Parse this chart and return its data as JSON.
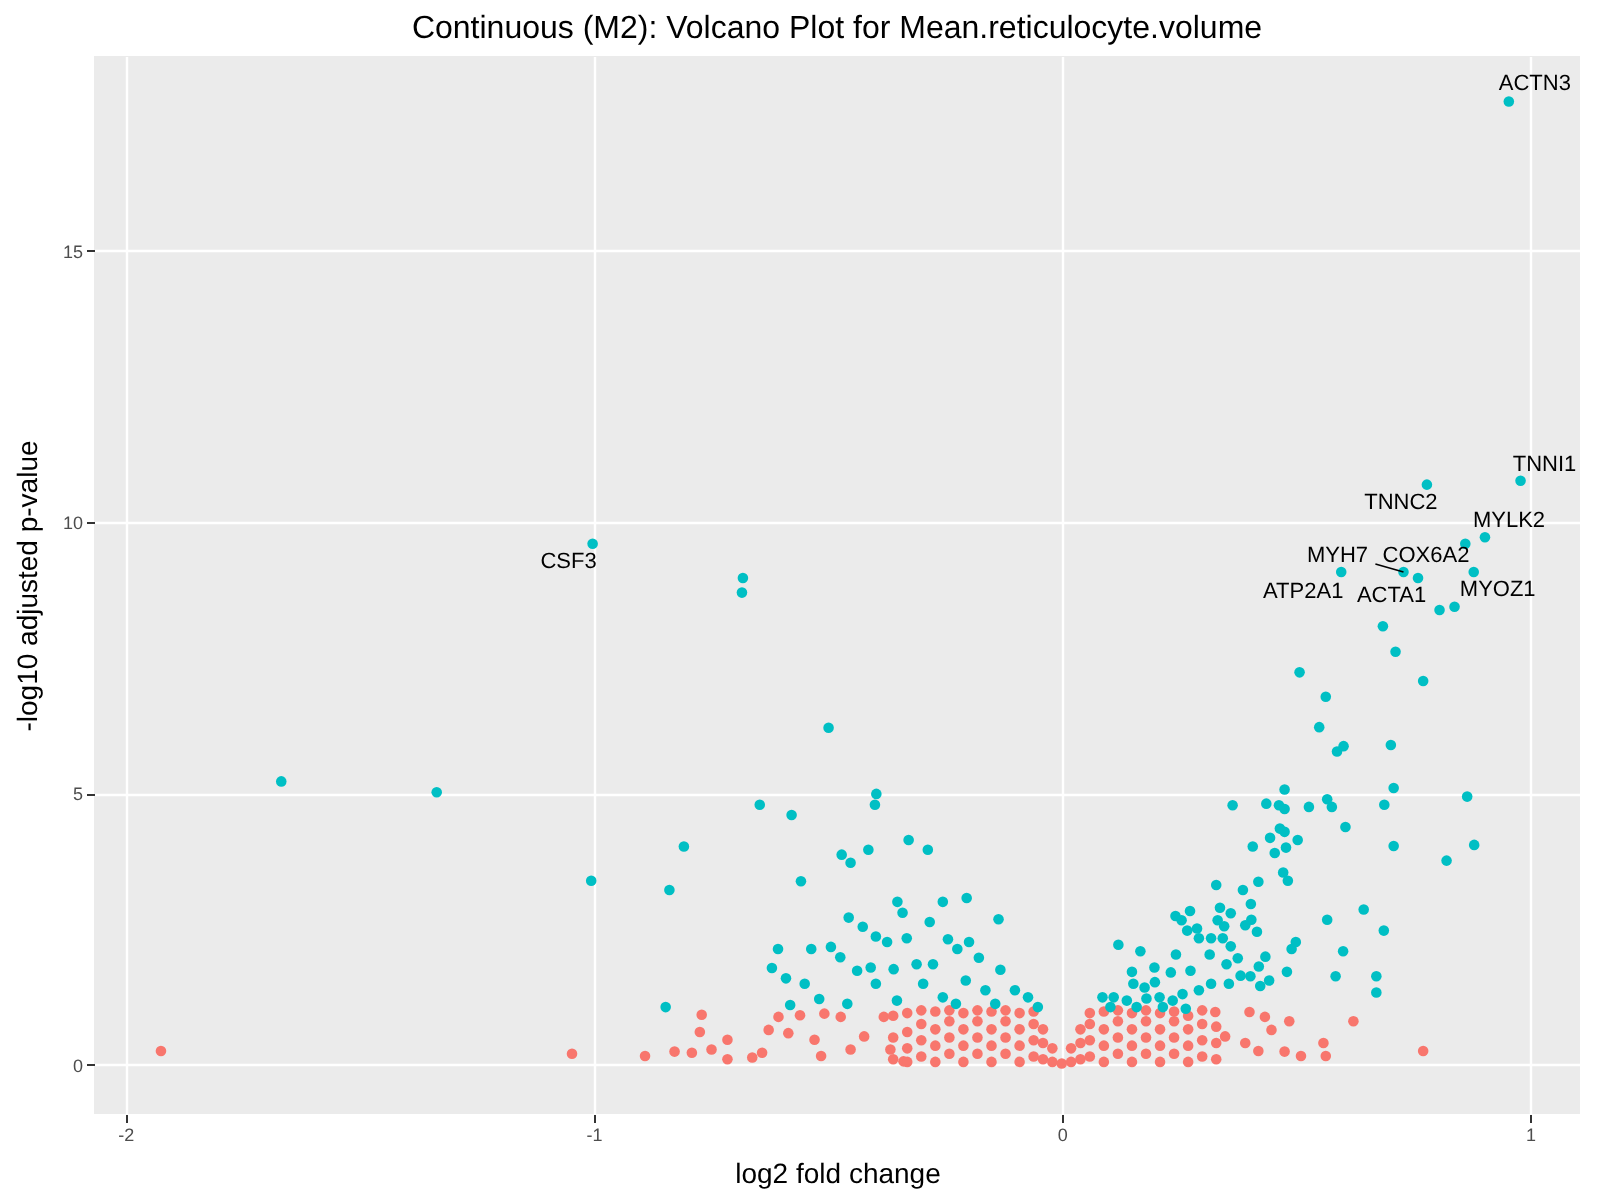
{
  "chart_data": {
    "type": "scatter",
    "title": "Continuous (M2): Volcano Plot for Mean.reticulocyte.volume",
    "xlabel": "log2 fold change",
    "ylabel": "-log10 adjusted p-value",
    "xlim": [
      -2.067,
      1.107
    ],
    "ylim": [
      -0.91,
      18.59
    ],
    "xticks": [
      -2,
      -1,
      0,
      1
    ],
    "yticks": [
      0,
      5,
      10,
      15
    ],
    "grid": true,
    "legend": false,
    "marker": "circle",
    "series": [
      {
        "color": "#f8766d",
        "x": [
          -1.924,
          -1.046,
          -0.89,
          -0.769,
          -0.773,
          -0.827,
          -0.79,
          -0.714,
          -0.748,
          -0.714,
          -0.661,
          -0.64,
          -0.605,
          -0.626,
          -0.584,
          -0.559,
          -0.528,
          -0.514,
          -0.507,
          -0.472,
          -0.451,
          -0.422,
          -0.38,
          -0.366,
          -0.338,
          -0.36,
          -0.36,
          -0.36,
          -0.33,
          -0.33,
          -0.33,
          -0.33,
          -0.3,
          -0.3,
          -0.3,
          -0.3,
          -0.27,
          -0.27,
          -0.27,
          -0.27,
          -0.24,
          -0.24,
          -0.24,
          -0.24,
          -0.21,
          -0.21,
          -0.21,
          -0.21,
          -0.18,
          -0.18,
          -0.18,
          -0.18,
          -0.15,
          -0.15,
          -0.15,
          -0.15,
          -0.12,
          -0.12,
          -0.12,
          -0.12,
          -0.09,
          -0.09,
          -0.09,
          -0.09,
          -0.06,
          -0.06,
          -0.06,
          -0.06,
          -0.04,
          -0.04,
          -0.04,
          -0.02,
          -0.02,
          0,
          0.02,
          0.02,
          0.04,
          0.04,
          0.04,
          0.06,
          0.06,
          0.06,
          0.06,
          0.09,
          0.09,
          0.09,
          0.09,
          0.12,
          0.12,
          0.12,
          0.12,
          0.15,
          0.15,
          0.15,
          0.15,
          0.18,
          0.18,
          0.18,
          0.18,
          0.21,
          0.21,
          0.21,
          0.21,
          0.24,
          0.24,
          0.24,
          0.24,
          0.27,
          0.27,
          0.27,
          0.27,
          0.3,
          0.3,
          0.3,
          0.3,
          0.33,
          0.33,
          0.33,
          0.623,
          0.772,
          0.559,
          0.564,
          0.511,
          0.476,
          0.486,
          0.448,
          0.434,
          0.401,
          0.42,
          0.392,
          0.349,
          0.328
        ],
        "values": [
          0.25,
          0.2,
          0.16,
          0.92,
          0.6,
          0.24,
          0.22,
          0.46,
          0.28,
          0.1,
          0.13,
          0.22,
          0.88,
          0.64,
          0.58,
          0.91,
          0.46,
          0.16,
          0.94,
          0.88,
          0.28,
          0.52,
          0.88,
          0.28,
          0.06,
          0.1,
          0.5,
          0.9,
          0.05,
          0.3,
          0.6,
          0.95,
          0.15,
          0.45,
          0.75,
          1.0,
          0.05,
          0.35,
          0.65,
          0.98,
          0.2,
          0.5,
          0.8,
          1.0,
          0.05,
          0.35,
          0.65,
          0.95,
          0.2,
          0.5,
          0.8,
          1.0,
          0.05,
          0.35,
          0.65,
          0.98,
          0.2,
          0.5,
          0.8,
          1.0,
          0.05,
          0.35,
          0.65,
          0.95,
          0.15,
          0.45,
          0.75,
          0.98,
          0.1,
          0.4,
          0.65,
          0.05,
          0.3,
          0.02,
          0.05,
          0.3,
          0.1,
          0.4,
          0.65,
          0.15,
          0.45,
          0.75,
          0.95,
          0.05,
          0.35,
          0.65,
          0.98,
          0.2,
          0.5,
          0.8,
          1.0,
          0.05,
          0.35,
          0.65,
          0.95,
          0.2,
          0.5,
          0.8,
          1.0,
          0.05,
          0.35,
          0.65,
          0.95,
          0.2,
          0.5,
          0.8,
          0.98,
          0.05,
          0.35,
          0.65,
          0.9,
          0.15,
          0.45,
          0.75,
          1.0,
          0.1,
          0.4,
          0.7,
          0.8,
          0.25,
          0.4,
          0.16,
          0.16,
          0.24,
          0.8,
          0.64,
          0.88,
          0.97,
          0.25,
          0.4,
          0.52,
          0.97
        ]
      },
      {
        "color": "#00bfc4",
        "x": [
          0.955,
          0.98,
          0.78,
          0.904,
          0.862,
          0.73,
          0.761,
          0.597,
          0.807,
          0.839,
          0.88,
          -1.002,
          0.686,
          -1.667,
          -1.335,
          -1.005,
          -0.681,
          -0.683,
          -0.498,
          -0.645,
          -0.577,
          -0.396,
          -0.399,
          -0.807,
          -0.838,
          -0.557,
          -0.846,
          -0.47,
          -0.451,
          -0.413,
          -0.327,
          -0.286,
          -0.455,
          -0.351,
          -0.34,
          -0.254,
          -0.203,
          -0.135,
          -0.425,
          -0.606,
          -0.535,
          -0.493,
          -0.619,
          -0.589,
          -0.549,
          -0.58,
          -0.518,
          -0.473,
          -0.437,
          -0.397,
          -0.373,
          -0.331,
          -0.282,
          -0.243,
          -0.198,
          -0.408,
          -0.359,
          -0.31,
          -0.275,
          -0.223,
          -0.177,
          -0.131,
          -0.397,
          -0.352,
          -0.296,
          -0.254,
          -0.205,
          -0.163,
          -0.1,
          -0.072,
          -0.051,
          -0.458,
          -0.226,
          -0.142,
          0.713,
          0.508,
          0.772,
          0.564,
          0.55,
          0.588,
          0.602,
          0.703,
          0.709,
          0.866,
          0.476,
          0.365,
          0.437,
          0.464,
          0.476,
          0.528,
          0.567,
          0.577,
          0.689,
          0.606,
          0.709,
          0.881,
          0.822,
          0.466,
          0.476,
          0.504,
          0.445,
          0.408,
          0.455,
          0.479,
          0.473,
          0.483,
          0.42,
          0.387,
          0.33,
          0.404,
          0.338,
          0.361,
          0.274,
          0.243,
          0.256,
          0.333,
          0.405,
          0.417,
          0.392,
          0.347,
          0.268,
          0.289,
          0.293,
          0.319,
          0.344,
          0.361,
          0.5,
          0.491,
          0.567,
          0.645,
          0.688,
          0.601,
          0.585,
          0.672,
          0.672,
          0.481,
          0.121,
          0.168,
          0.198,
          0.15,
          0.233,
          0.244,
          0.275,
          0.316,
          0.352,
          0.376,
          0.382,
          0.403,
          0.421,
          0.435,
          0.424,
          0.443,
          0.357,
          0.319,
          0.293,
          0.199,
          0.177,
          0.153,
          0.087,
          0.111,
          0.139,
          0.181,
          0.209,
          0.237,
          0.258,
          0.104,
          0.16,
          0.216,
          0.265
        ],
        "values": [
          17.75,
          10.76,
          10.69,
          9.72,
          9.6,
          9.08,
          8.97,
          9.08,
          8.38,
          8.44,
          9.08,
          9.6,
          8.08,
          5.22,
          5.02,
          3.39,
          8.97,
          8.7,
          6.21,
          4.79,
          4.6,
          4.99,
          4.79,
          4.02,
          3.22,
          3.38,
          1.06,
          3.87,
          3.72,
          3.96,
          4.14,
          3.96,
          2.71,
          3.0,
          2.8,
          3.0,
          3.07,
          2.68,
          2.54,
          2.13,
          2.13,
          2.17,
          1.78,
          1.59,
          1.49,
          1.1,
          1.21,
          1.98,
          1.73,
          2.36,
          2.26,
          2.33,
          2.63,
          2.31,
          2.26,
          1.79,
          1.76,
          1.85,
          1.85,
          2.13,
          1.97,
          1.75,
          1.49,
          1.18,
          1.49,
          1.24,
          1.55,
          1.37,
          1.37,
          1.24,
          1.06,
          1.12,
          1.12,
          1.12,
          7.61,
          7.23,
          7.07,
          6.78,
          6.22,
          5.77,
          5.87,
          5.89,
          5.1,
          4.94,
          5.07,
          4.78,
          4.81,
          4.78,
          4.71,
          4.75,
          4.89,
          4.75,
          4.79,
          4.38,
          4.03,
          4.05,
          3.76,
          4.35,
          4.29,
          4.14,
          4.18,
          4.02,
          3.9,
          4.0,
          3.54,
          3.39,
          3.37,
          3.22,
          3.31,
          2.96,
          2.89,
          2.79,
          2.83,
          2.74,
          2.66,
          2.66,
          2.67,
          2.45,
          2.57,
          2.55,
          2.47,
          2.51,
          2.33,
          2.33,
          2.33,
          2.18,
          2.26,
          2.13,
          2.67,
          2.86,
          2.47,
          2.09,
          1.63,
          1.63,
          1.33,
          1.71,
          2.21,
          2.09,
          1.79,
          1.71,
          1.7,
          2.03,
          1.73,
          2.03,
          1.85,
          1.96,
          1.64,
          1.63,
          1.81,
          1.99,
          1.45,
          1.55,
          1.49,
          1.49,
          1.37,
          1.52,
          1.42,
          1.49,
          1.24,
          1.24,
          1.18,
          1.22,
          1.24,
          1.18,
          1.3,
          1.06,
          1.06,
          1.06,
          1.03
        ]
      }
    ],
    "annotations": [
      {
        "text": "ACTN3",
        "x": 0.955,
        "y": 17.75
      },
      {
        "text": "TNNI1",
        "x": 0.98,
        "y": 10.76
      },
      {
        "text": "TNNC2",
        "x": 0.78,
        "y": 10.69
      },
      {
        "text": "MYLK2",
        "x": 0.904,
        "y": 9.72
      },
      {
        "text": "MYH7",
        "x": 0.73,
        "y": 9.08
      },
      {
        "text": "COX6A2",
        "x": 0.761,
        "y": 8.97
      },
      {
        "text": "ATP2A1",
        "x": 0.597,
        "y": 9.08
      },
      {
        "text": "ACTA1",
        "x": 0.807,
        "y": 8.38
      },
      {
        "text": "MYOZ1",
        "x": 0.88,
        "y": 9.08
      },
      {
        "text": "CSF3",
        "x": -1.002,
        "y": 9.6
      }
    ]
  }
}
